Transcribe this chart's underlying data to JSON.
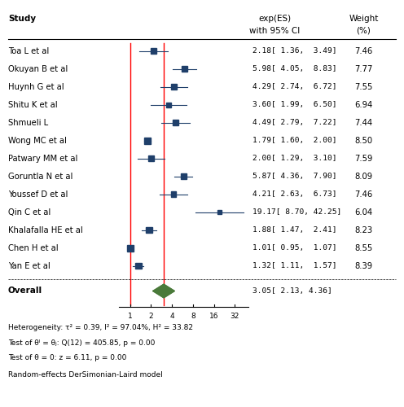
{
  "studies": [
    {
      "name": "Toa L et al",
      "es": 2.18,
      "lower": 1.36,
      "upper": 3.49,
      "weight": 7.46
    },
    {
      "name": "Okuyan B et al",
      "es": 5.98,
      "lower": 4.05,
      "upper": 8.83,
      "weight": 7.77
    },
    {
      "name": "Huynh G et al",
      "es": 4.29,
      "lower": 2.74,
      "upper": 6.72,
      "weight": 7.55
    },
    {
      "name": "Shitu K et al",
      "es": 3.6,
      "lower": 1.99,
      "upper": 6.5,
      "weight": 6.94
    },
    {
      "name": "Shmueli L",
      "es": 4.49,
      "lower": 2.79,
      "upper": 7.22,
      "weight": 7.44
    },
    {
      "name": "Wong MC et al",
      "es": 1.79,
      "lower": 1.6,
      "upper": 2.0,
      "weight": 8.5
    },
    {
      "name": "Patwary MM et al",
      "es": 2.0,
      "lower": 1.29,
      "upper": 3.1,
      "weight": 7.59
    },
    {
      "name": "Goruntla N et al",
      "es": 5.87,
      "lower": 4.36,
      "upper": 7.9,
      "weight": 8.09
    },
    {
      "name": "Youssef D et al",
      "es": 4.21,
      "lower": 2.63,
      "upper": 6.73,
      "weight": 7.46
    },
    {
      "name": "Qin C et al",
      "es": 19.17,
      "lower": 8.7,
      "upper": 42.25,
      "weight": 6.04
    },
    {
      "name": "Khalafalla HE et al",
      "es": 1.88,
      "lower": 1.47,
      "upper": 2.41,
      "weight": 8.23
    },
    {
      "name": "Chen H et al",
      "es": 1.01,
      "lower": 0.95,
      "upper": 1.07,
      "weight": 8.55
    },
    {
      "name": "Yan E et al",
      "es": 1.32,
      "lower": 1.11,
      "upper": 1.57,
      "weight": 8.39
    }
  ],
  "overall": {
    "es": 3.05,
    "lower": 2.13,
    "upper": 4.36
  },
  "col_header1": "exp(ES)",
  "col_header2": "with 95% CI",
  "col_header3": "Weight",
  "col_header4": "(%)",
  "study_label": "Study",
  "xticks": [
    1,
    2,
    4,
    8,
    16,
    32
  ],
  "xmin": 0.7,
  "xmax": 50,
  "ref_line": 1.0,
  "ref_line2": 3.05,
  "box_color": "#1F3F6A",
  "diamond_color": "#4A7A3A",
  "line_color": "#1F3F6A",
  "footer_lines": [
    "Heterogeneity: τ² = 0.39, I² = 97.04%, H² = 33.82",
    "Test of θᴵ = θⱼ: Q(12) = 405.85, p = 0.00",
    "Test of θ = 0: z = 6.11, p = 0.00"
  ],
  "footer_model": "Random-effects DerSimonian-Laird model"
}
